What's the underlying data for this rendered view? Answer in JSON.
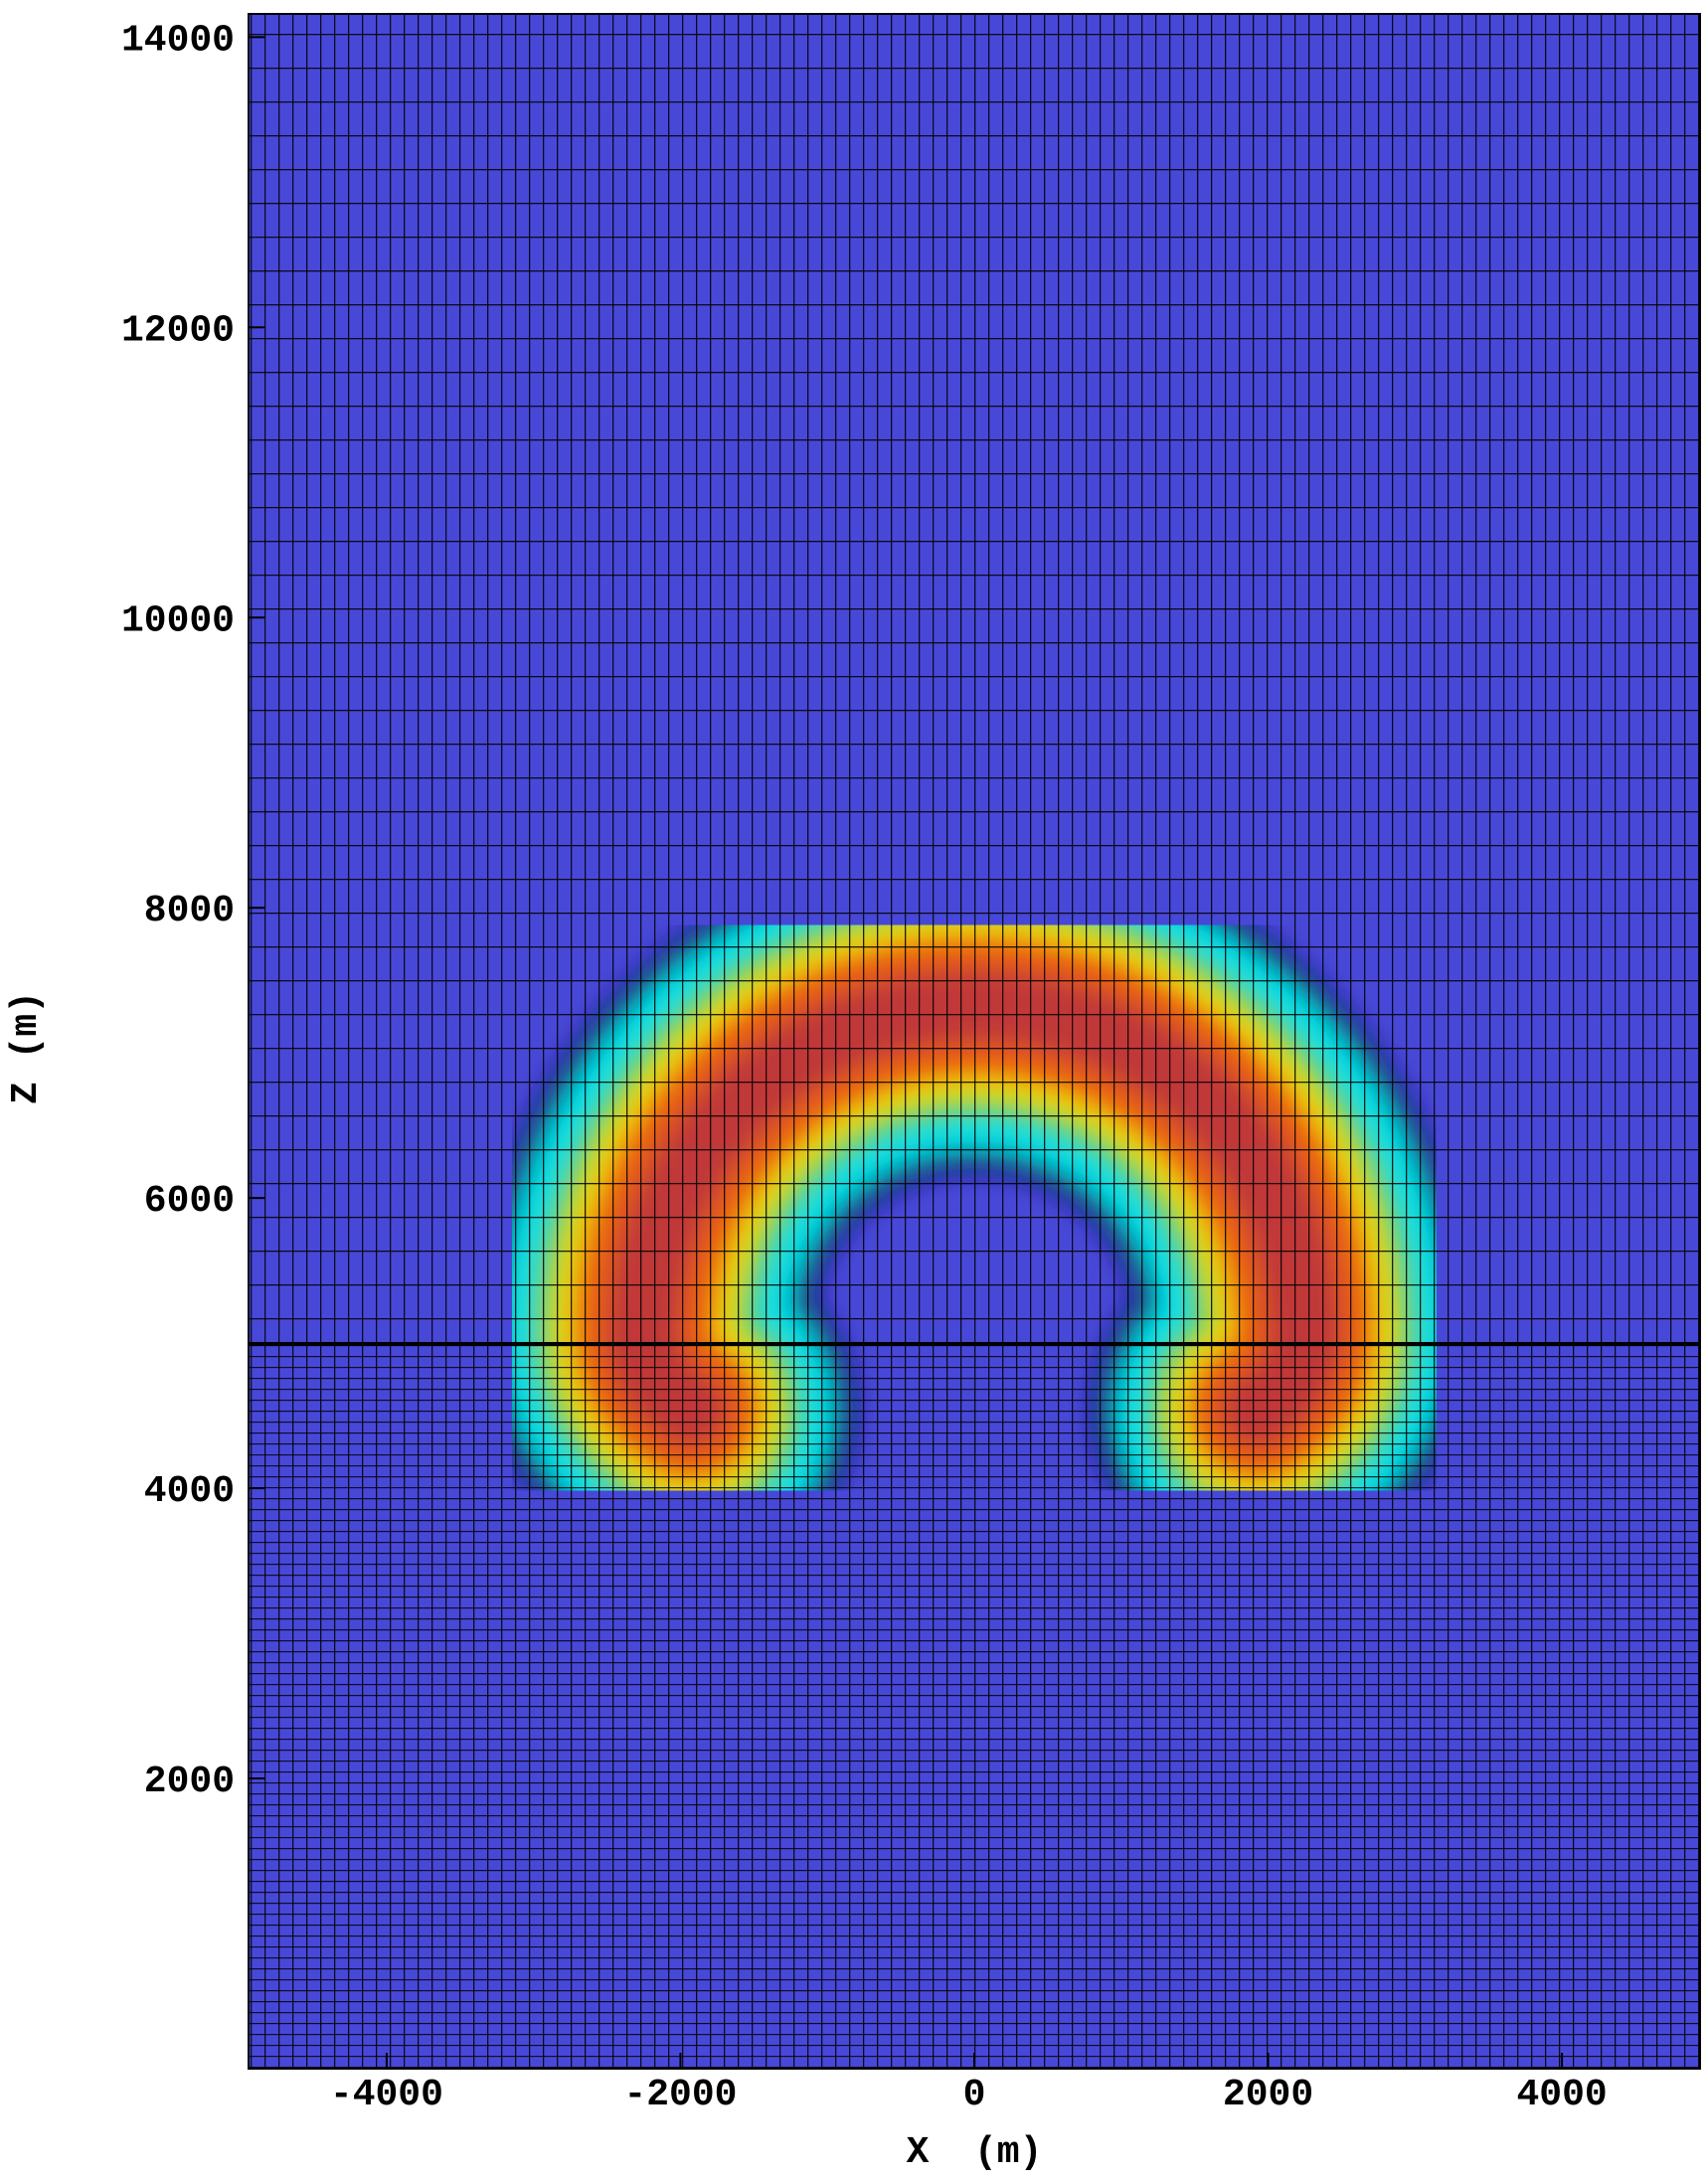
{
  "chart_data": {
    "type": "field",
    "xlabel": "X  (m)",
    "ylabel": "Z (m)",
    "xlim": [
      -4940,
      4940
    ],
    "ylim": [
      0,
      14160
    ],
    "xticks": [
      -4000,
      -2000,
      0,
      2000,
      4000
    ],
    "yticks": [
      2000,
      4000,
      6000,
      8000,
      10000,
      12000,
      14000
    ],
    "background": "#4848d8"
  }
}
